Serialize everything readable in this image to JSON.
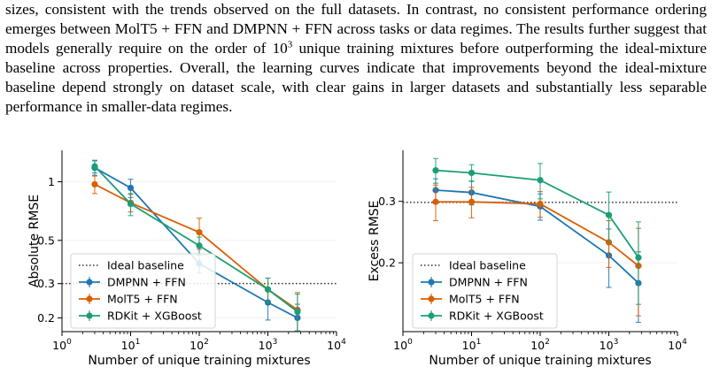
{
  "paragraph": {
    "part1": "sizes, consistent with the trends observed on the full datasets. In contrast, no consistent performance ordering emerges between MolT5 + FFN and DMPNN + FFN across tasks or data regimes. The results further suggest that models generally require on the order of 10",
    "exponent": "3",
    "part2": " unique training mixtures before outperforming the ideal-mixture baseline across properties. Overall, the learning curves indicate that improvements beyond the ideal-mixture baseline depend strongly on dataset scale, with clear gains in larger datasets and substantially less separable performance in smaller-data regimes."
  },
  "colors": {
    "DMPNN + FFN": "#1f77b4",
    "MolT5 + FFN": "#d95f02",
    "RDKit + XGBoost": "#1b9e77",
    "baseline": "#333333"
  },
  "chart_data": [
    {
      "type": "line",
      "ylabel": "Absolute RMSE",
      "xlabel": "Number of unique training mixtures",
      "xscale": "log",
      "yscale": "log",
      "xlim": [
        1,
        10000
      ],
      "ylim": [
        0.17,
        1.45
      ],
      "x_ticks": [
        {
          "base": "10",
          "exp": "0"
        },
        {
          "base": "10",
          "exp": "1"
        },
        {
          "base": "10",
          "exp": "2"
        },
        {
          "base": "10",
          "exp": "3"
        },
        {
          "base": "10",
          "exp": "4"
        }
      ],
      "y_ticks": [
        {
          "v": 1,
          "label": "1"
        },
        {
          "v": 0.5,
          "label": "0.5"
        },
        {
          "v": 0.3,
          "label": "0.3"
        },
        {
          "v": 0.2,
          "label": "0.2"
        }
      ],
      "legend_position": "lower-left",
      "baseline": {
        "name": "Ideal baseline",
        "y": 0.3
      },
      "x": [
        3,
        10,
        100,
        1000,
        2700
      ],
      "series": [
        {
          "name": "DMPNN + FFN",
          "values": [
            1.18,
            0.93,
            0.38,
            0.24,
            0.2
          ],
          "err": [
            0.1,
            0.1,
            0.04,
            0.045,
            0.035
          ]
        },
        {
          "name": "MolT5 + FFN",
          "values": [
            0.97,
            0.78,
            0.55,
            0.28,
            0.22
          ],
          "err": [
            0.1,
            0.08,
            0.1,
            0.04,
            0.05
          ]
        },
        {
          "name": "RDKit + XGBoost",
          "values": [
            1.2,
            0.77,
            0.47,
            0.28,
            0.215
          ],
          "err": [
            0.09,
            0.1,
            0.05,
            0.04,
            0.05
          ]
        }
      ],
      "grid": false
    },
    {
      "type": "line",
      "ylabel": "Excess RMSE",
      "xlabel": "Number of unique training mixtures",
      "xscale": "log",
      "yscale": "log",
      "xlim": [
        1,
        10000
      ],
      "ylim": [
        0.127,
        0.42
      ],
      "x_ticks": [
        {
          "base": "10",
          "exp": "0"
        },
        {
          "base": "10",
          "exp": "1"
        },
        {
          "base": "10",
          "exp": "2"
        },
        {
          "base": "10",
          "exp": "3"
        },
        {
          "base": "10",
          "exp": "4"
        }
      ],
      "y_ticks": [
        {
          "v": 0.3,
          "label": "0.3"
        },
        {
          "v": 0.2,
          "label": "0.2"
        }
      ],
      "legend_position": "lower-left",
      "baseline": {
        "name": "Ideal baseline",
        "y": 0.298
      },
      "x": [
        3,
        10,
        100,
        1000,
        2700
      ],
      "series": [
        {
          "name": "DMPNN + FFN",
          "values": [
            0.323,
            0.318,
            0.29,
            0.21,
            0.175
          ],
          "err": [
            0.025,
            0.025,
            0.025,
            0.04,
            0.04
          ]
        },
        {
          "name": "MolT5 + FFN",
          "values": [
            0.299,
            0.299,
            0.295,
            0.229,
            0.196
          ],
          "err": [
            0.035,
            0.03,
            0.025,
            0.035,
            0.055
          ]
        },
        {
          "name": "RDKit + XGBoost",
          "values": [
            0.368,
            0.362,
            0.345,
            0.274,
            0.207
          ],
          "err": [
            0.03,
            0.02,
            0.04,
            0.045,
            0.055
          ]
        }
      ],
      "grid": false
    }
  ]
}
